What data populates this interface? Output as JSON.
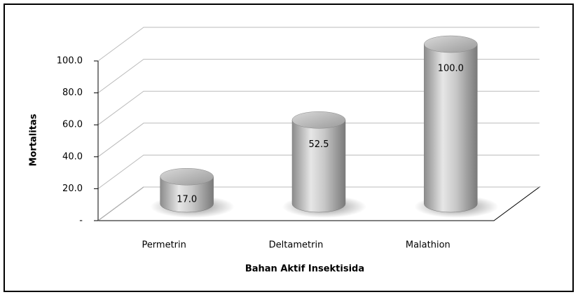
{
  "chart_data": {
    "type": "bar3d",
    "x_label": "Bahan Aktif Insektisida",
    "y_label": "Mortalitas",
    "categories": [
      "Permetrin",
      "Deltametrin",
      "Malathion"
    ],
    "values": [
      17,
      52.5,
      100
    ],
    "value_labels": [
      "17.0",
      "52.5",
      "100.0"
    ],
    "color": "#a6a6a6",
    "ylim": [
      0,
      100
    ],
    "yticks": [
      {
        "value": 0,
        "label": "-"
      },
      {
        "value": 20,
        "label": "20.0"
      },
      {
        "value": 40,
        "label": "40.0"
      },
      {
        "value": 60,
        "label": "60.0"
      },
      {
        "value": 80,
        "label": "80.0"
      },
      {
        "value": 100,
        "label": "100.0"
      }
    ],
    "grid": true
  }
}
